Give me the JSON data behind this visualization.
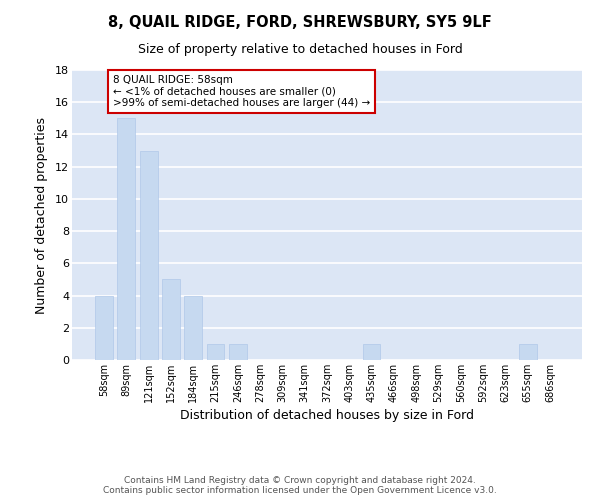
{
  "title": "8, QUAIL RIDGE, FORD, SHREWSBURY, SY5 9LF",
  "subtitle": "Size of property relative to detached houses in Ford",
  "xlabel": "Distribution of detached houses by size in Ford",
  "ylabel": "Number of detached properties",
  "categories": [
    "58sqm",
    "89sqm",
    "121sqm",
    "152sqm",
    "184sqm",
    "215sqm",
    "246sqm",
    "278sqm",
    "309sqm",
    "341sqm",
    "372sqm",
    "403sqm",
    "435sqm",
    "466sqm",
    "498sqm",
    "529sqm",
    "560sqm",
    "592sqm",
    "623sqm",
    "655sqm",
    "686sqm"
  ],
  "values": [
    4,
    15,
    13,
    5,
    4,
    1,
    1,
    0,
    0,
    0,
    0,
    0,
    1,
    0,
    0,
    0,
    0,
    0,
    0,
    1,
    0
  ],
  "bar_color": "#c6d9f0",
  "bar_edge_color": "#b0c8e8",
  "annotation_box_text": "8 QUAIL RIDGE: 58sqm\n← <1% of detached houses are smaller (0)\n>99% of semi-detached houses are larger (44) →",
  "annotation_box_edge_color": "#cc0000",
  "annotation_box_facecolor": "#ffffff",
  "ylim": [
    0,
    18
  ],
  "yticks": [
    0,
    2,
    4,
    6,
    8,
    10,
    12,
    14,
    16,
    18
  ],
  "footer_line1": "Contains HM Land Registry data © Crown copyright and database right 2024.",
  "footer_line2": "Contains public sector information licensed under the Open Government Licence v3.0.",
  "background_color": "#ffffff",
  "grid_color": "#ffffff",
  "plot_bg_color": "#dce6f5"
}
